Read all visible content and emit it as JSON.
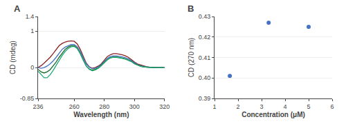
{
  "chart_data": [
    {
      "type": "line",
      "title": "A",
      "x_label": "Wavelength (nm)",
      "y_label": "CD (mdeg)",
      "x": [
        236,
        238,
        240,
        242,
        244,
        246,
        248,
        250,
        252,
        254,
        256,
        258,
        260,
        262,
        264,
        266,
        268,
        270,
        272,
        274,
        276,
        278,
        280,
        282,
        284,
        286,
        288,
        290,
        292,
        294,
        296,
        298,
        300,
        302,
        304,
        306,
        308,
        310,
        312,
        314,
        316,
        318,
        320
      ],
      "series": [
        {
          "color": "#8B2020",
          "values": [
            0.0,
            0.05,
            0.12,
            0.2,
            0.28,
            0.38,
            0.5,
            0.6,
            0.66,
            0.7,
            0.72,
            0.73,
            0.72,
            0.65,
            0.5,
            0.3,
            0.12,
            0.02,
            -0.02,
            0.0,
            0.04,
            0.1,
            0.2,
            0.3,
            0.35,
            0.38,
            0.38,
            0.37,
            0.35,
            0.32,
            0.28,
            0.22,
            0.15,
            0.1,
            0.07,
            0.04,
            0.02,
            0.01,
            0.005,
            0.0,
            0.0,
            0.0,
            0.0
          ]
        },
        {
          "color": "#4472C4",
          "values": [
            0.0,
            -0.02,
            0.0,
            0.04,
            0.1,
            0.18,
            0.28,
            0.4,
            0.5,
            0.56,
            0.6,
            0.63,
            0.63,
            0.57,
            0.44,
            0.26,
            0.1,
            0.01,
            -0.03,
            -0.02,
            0.02,
            0.08,
            0.17,
            0.25,
            0.3,
            0.32,
            0.32,
            0.31,
            0.29,
            0.27,
            0.24,
            0.19,
            0.13,
            0.08,
            0.05,
            0.03,
            0.01,
            0.005,
            0.0,
            0.0,
            0.0,
            0.0,
            0.0
          ]
        },
        {
          "color": "#1a6b2a",
          "values": [
            -0.05,
            -0.12,
            -0.15,
            -0.12,
            -0.06,
            0.04,
            0.15,
            0.28,
            0.4,
            0.5,
            0.56,
            0.6,
            0.6,
            0.53,
            0.39,
            0.2,
            0.04,
            -0.04,
            -0.07,
            -0.05,
            -0.01,
            0.06,
            0.14,
            0.22,
            0.27,
            0.29,
            0.29,
            0.28,
            0.26,
            0.24,
            0.21,
            0.17,
            0.11,
            0.07,
            0.04,
            0.02,
            0.01,
            0.005,
            0.0,
            0.0,
            0.0,
            0.0,
            0.0
          ]
        },
        {
          "color": "#20A878",
          "values": [
            -0.1,
            -0.2,
            -0.28,
            -0.28,
            -0.2,
            -0.08,
            0.06,
            0.2,
            0.33,
            0.44,
            0.52,
            0.57,
            0.58,
            0.52,
            0.38,
            0.2,
            0.04,
            -0.05,
            -0.09,
            -0.07,
            -0.02,
            0.05,
            0.13,
            0.21,
            0.26,
            0.28,
            0.28,
            0.27,
            0.25,
            0.23,
            0.2,
            0.16,
            0.1,
            0.06,
            0.03,
            0.02,
            0.01,
            0.005,
            0.0,
            0.0,
            0.0,
            0.0,
            0.0
          ]
        }
      ],
      "xlim": [
        236,
        320
      ],
      "ylim": [
        -0.85,
        1.4
      ],
      "xticks": [
        236,
        260,
        280,
        300,
        320
      ],
      "yticks": [
        -0.85,
        0,
        1,
        1.4
      ],
      "grid": "y"
    },
    {
      "type": "scatter",
      "title": "B",
      "x_label": "Concentration (μM)",
      "y_label": "CD (270 nm)",
      "x": [
        1.65,
        3.3,
        5.0
      ],
      "values": [
        0.401,
        0.427,
        0.425
      ],
      "color": "#4472C4",
      "xlim": [
        1,
        6
      ],
      "ylim": [
        0.39,
        0.43
      ],
      "xticks": [
        1,
        2,
        3,
        4,
        5,
        6
      ],
      "yticks": [
        0.39,
        {
          "value": 0.4,
          "label": "0.40"
        },
        0.41,
        0.42,
        0.43
      ],
      "grid": "y"
    }
  ]
}
